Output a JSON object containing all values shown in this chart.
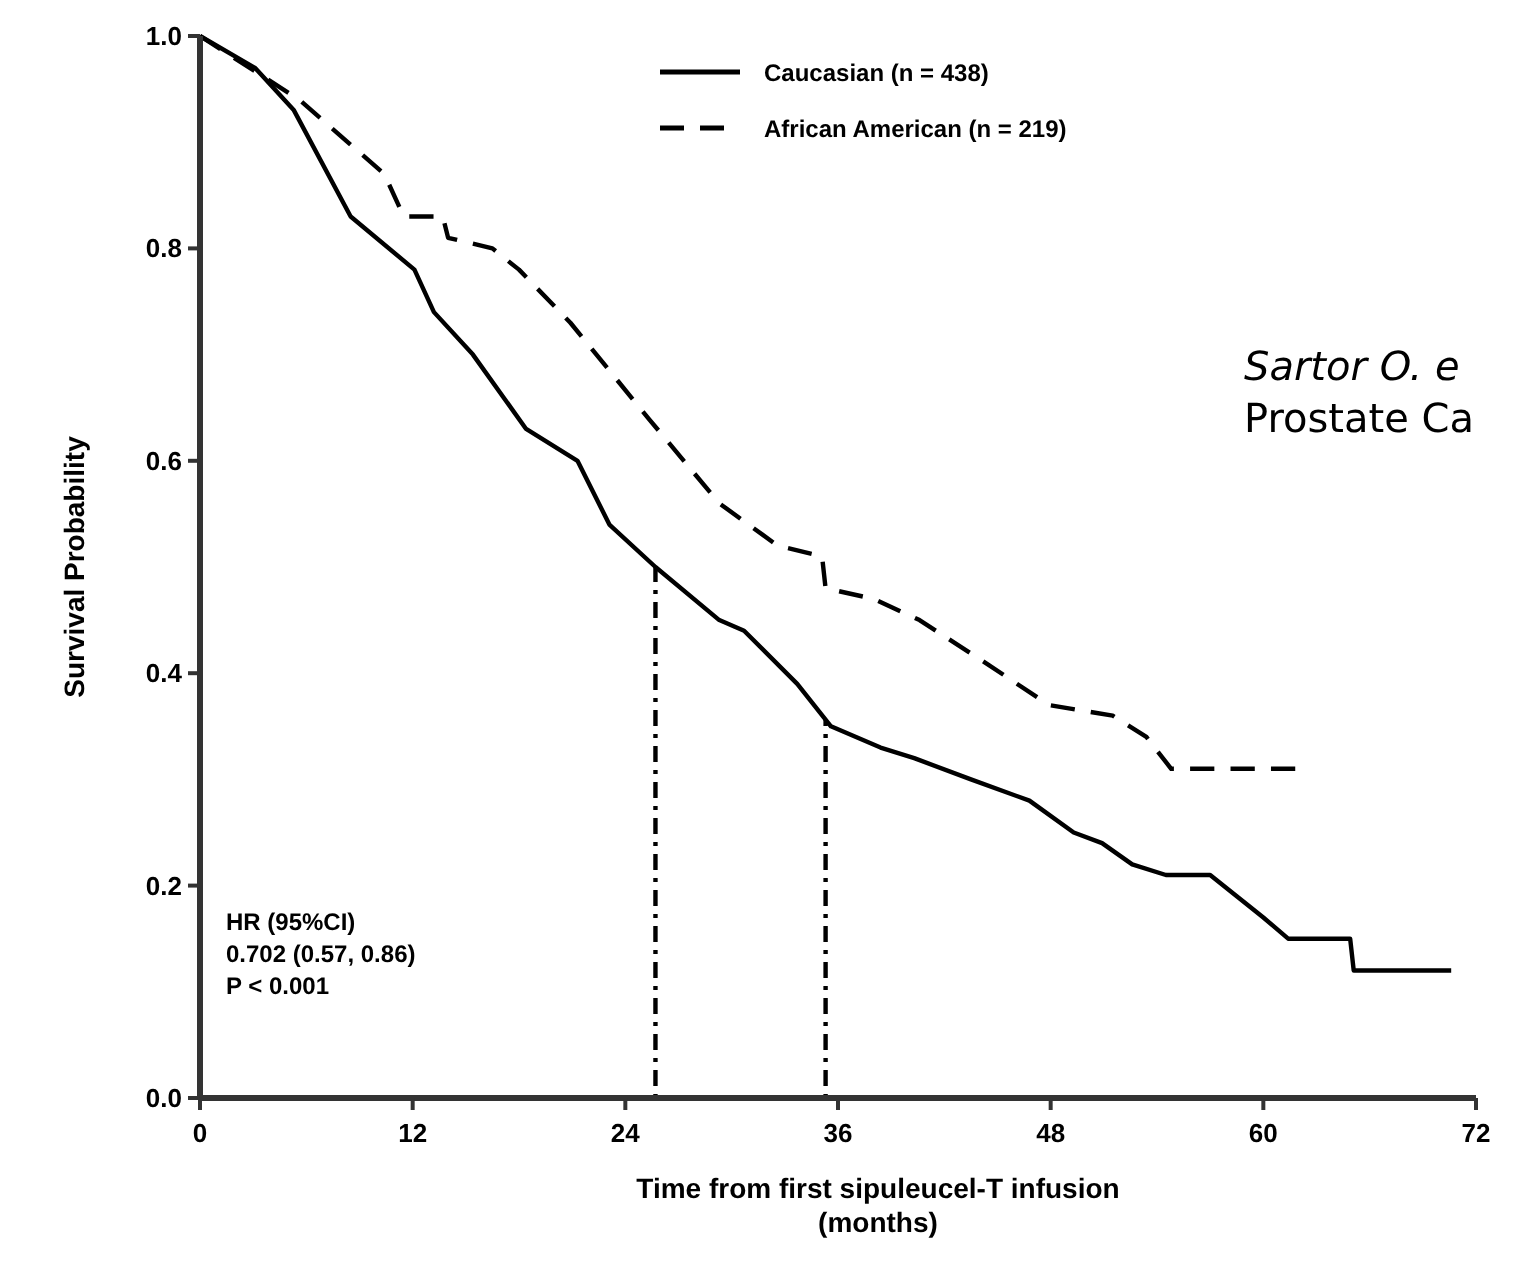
{
  "chart_data": {
    "type": "line",
    "xlabel": "Time from first sipuleucel-T infusion\n(months)",
    "ylabel": "Survival Probability",
    "xlim": [
      0,
      72
    ],
    "xticks": [
      0,
      12,
      24,
      36,
      48,
      60,
      72
    ],
    "ylim": [
      0,
      1
    ],
    "yticks": [
      {
        "value": 0,
        "label": "0.0"
      },
      0.2,
      0.4,
      0.6,
      0.8,
      {
        "value": 1,
        "label": "1.0"
      }
    ],
    "grid": false,
    "legend": "top right",
    "marker": "none",
    "series": [
      {
        "name": "Caucasian (n = 438)",
        "color": "#000000",
        "line_style": "solid",
        "x": [
          0,
          3.1,
          5.3,
          8.5,
          12.1,
          13.2,
          15.4,
          18.4,
          21.3,
          23.1,
          25.7,
          29.3,
          30.7,
          33.7,
          35.6,
          38.4,
          40.3,
          43.5,
          46.8,
          49.3,
          50.9,
          52.6,
          54.5,
          57,
          58.5,
          60,
          61.4,
          64.9,
          65.1,
          70.6
        ],
        "values": [
          1,
          0.97,
          0.93,
          0.83,
          0.78,
          0.74,
          0.7,
          0.63,
          0.6,
          0.54,
          0.5,
          0.45,
          0.44,
          0.39,
          0.35,
          0.33,
          0.32,
          0.3,
          0.28,
          0.25,
          0.24,
          0.22,
          0.21,
          0.21,
          0.19,
          0.17,
          0.15,
          0.15,
          0.12,
          0.12
        ]
      },
      {
        "name": "African American (n = 219)",
        "color": "#000000",
        "line_style": "dashed",
        "x": [
          0,
          5.6,
          10.4,
          11.5,
          12.6,
          13.7,
          14,
          16.5,
          18,
          20.9,
          25.3,
          29.3,
          32.6,
          35.1,
          35.3,
          38,
          40.6,
          44.3,
          47.9,
          51.5,
          53.4,
          54.8,
          61.8
        ],
        "values": [
          1,
          0.94,
          0.87,
          0.83,
          0.83,
          0.83,
          0.81,
          0.8,
          0.78,
          0.73,
          0.64,
          0.56,
          0.52,
          0.51,
          0.48,
          0.47,
          0.45,
          0.41,
          0.37,
          0.36,
          0.34,
          0.31,
          0.31
        ]
      }
    ],
    "ref_lines": [
      {
        "axis": "x",
        "value": 25.7,
        "color": "#000000",
        "line_style": "dotted"
      },
      {
        "axis": "x",
        "value": 35.3,
        "color": "#000000",
        "line_style": "dotted"
      }
    ],
    "annotations": [
      "HR (95%CI)",
      "0.702 (0.57, 0.86)",
      "P < 0.001",
      "Sartor O. e",
      "Prostate Ca"
    ]
  }
}
